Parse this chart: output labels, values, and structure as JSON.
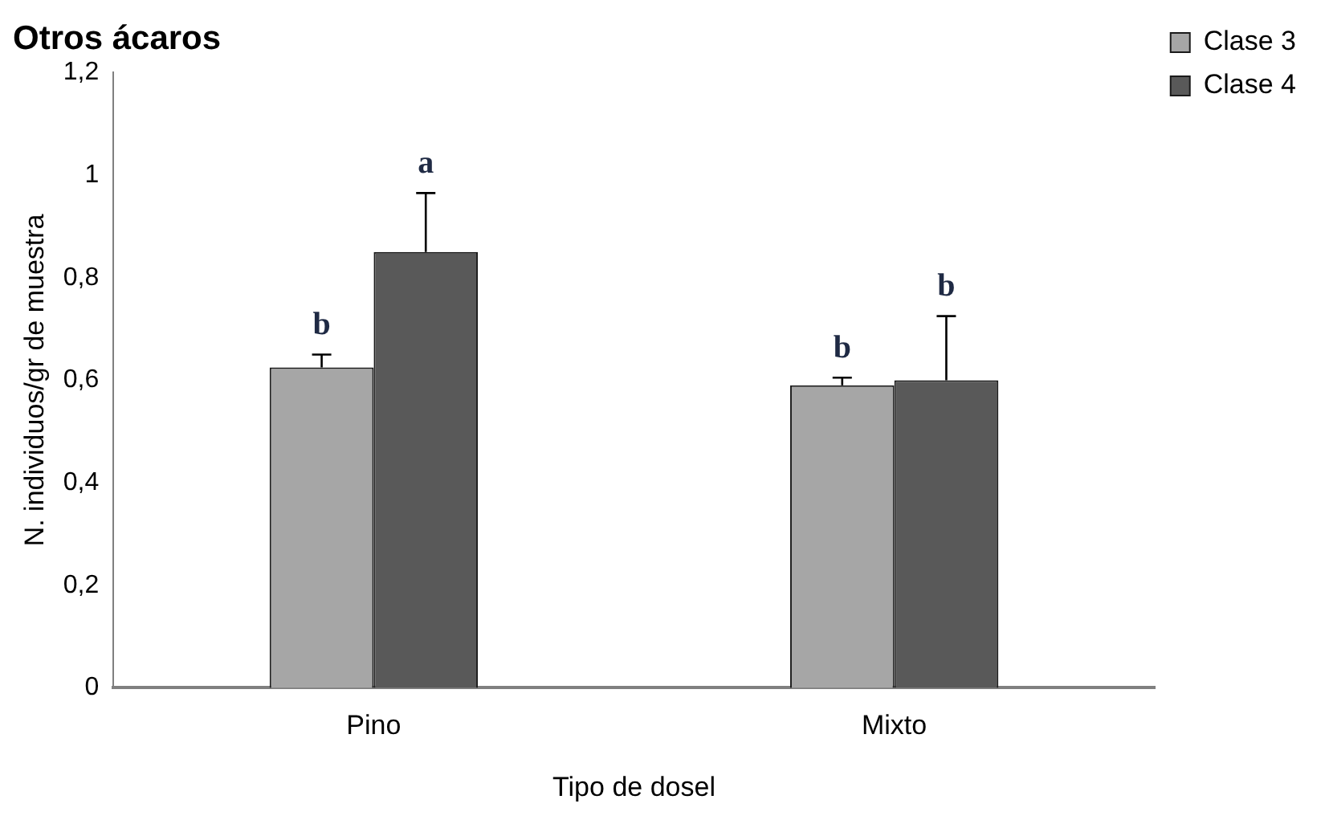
{
  "chart_data": {
    "type": "bar",
    "title": "Otros ácaros",
    "xlabel": "Tipo de dosel",
    "ylabel": "N. individuos/gr de muestra",
    "categories": [
      "Pino",
      "Mixto"
    ],
    "series": [
      {
        "name": "Clase 3",
        "color": "#a6a6a6",
        "values": [
          0.625,
          0.59
        ],
        "errors": [
          0.025,
          0.015
        ]
      },
      {
        "name": "Clase 4",
        "color": "#595959",
        "values": [
          0.85,
          0.6
        ],
        "errors": [
          0.115,
          0.125
        ]
      }
    ],
    "ylim": [
      0,
      1.2
    ],
    "yticks": [
      {
        "value": 0,
        "label": "0"
      },
      {
        "value": 0.2,
        "label": "0,2"
      },
      {
        "value": 0.4,
        "label": "0,4"
      },
      {
        "value": 0.6,
        "label": "0,6"
      },
      {
        "value": 0.8,
        "label": "0,8"
      },
      {
        "value": 1,
        "label": "1"
      },
      {
        "value": 1.2,
        "label": "1,2"
      }
    ],
    "grid": false,
    "legend": "top right",
    "annotations": [
      "b",
      "a",
      "b",
      "b"
    ]
  }
}
